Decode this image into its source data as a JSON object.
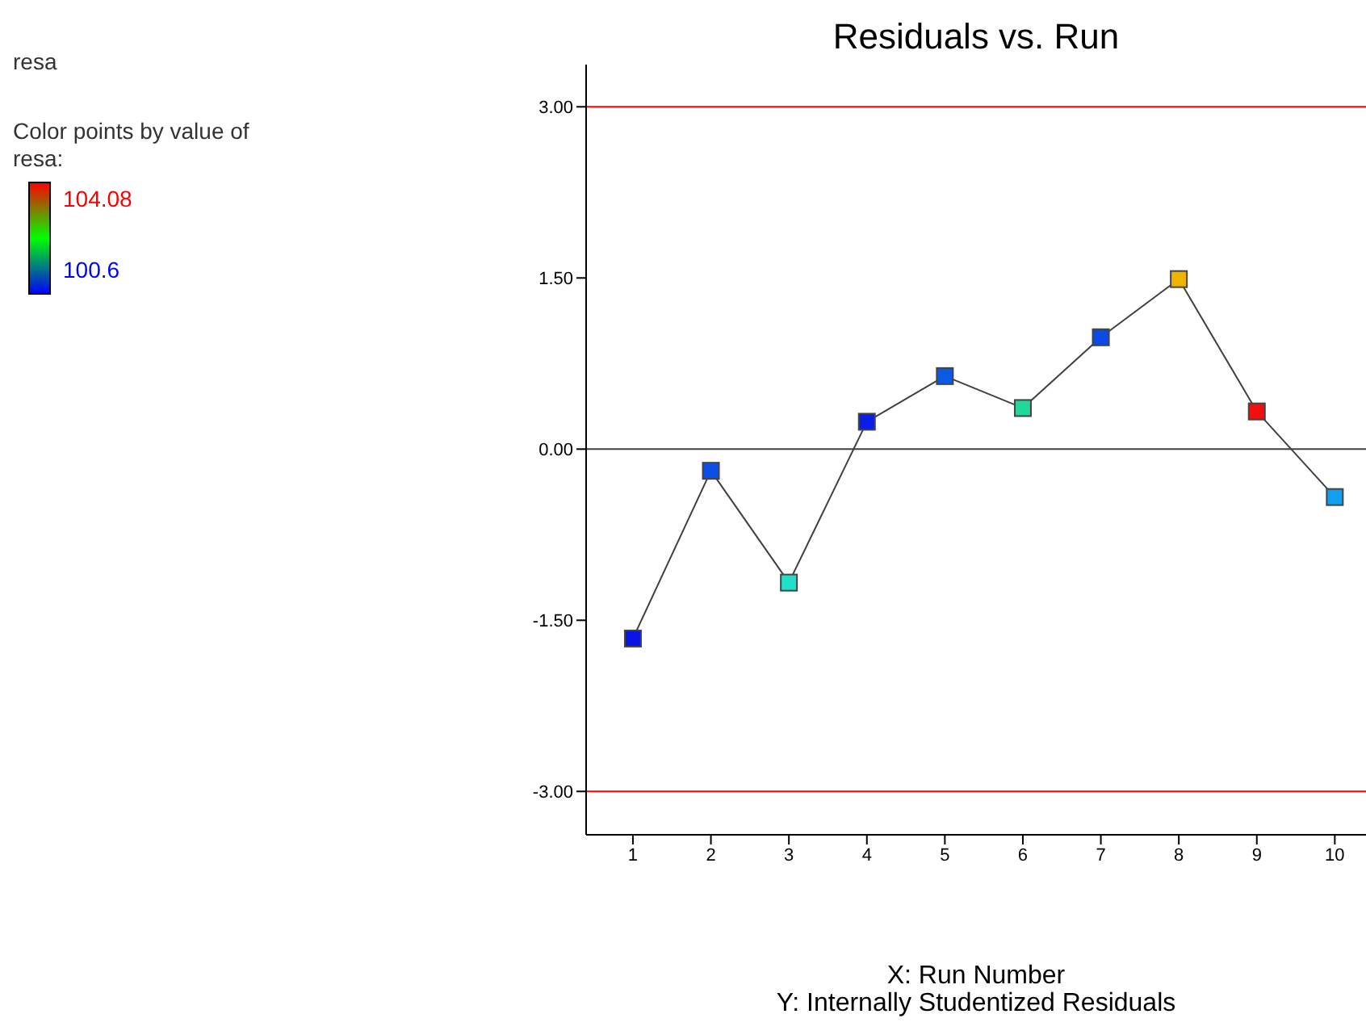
{
  "chart_data": {
    "type": "line",
    "title": "Residuals vs. Run",
    "xlabel": "X: Run Number",
    "clabel": "Color points by value of resa:",
    "clim": [
      100.6,
      104.08
    ],
    "cticks": [
      100.6,
      104.08
    ],
    "annotations": [
      "resa",
      "Y: Internally Studentized Residuals"
    ],
    "x": [
      1,
      2,
      3,
      4,
      5,
      6,
      7,
      8,
      9,
      10
    ],
    "series": [
      {
        "color": "#404040",
        "colors": [
          "#0a14e6",
          "#0a50e6",
          "#20e0c8",
          "#0a1ee6",
          "#0a5ae6",
          "#20d89a",
          "#0a4ae6",
          "#f0b400",
          "#f01010",
          "#10a0f0"
        ],
        "values": [
          -1.66,
          -0.19,
          -1.17,
          0.24,
          0.64,
          0.36,
          0.98,
          1.49,
          0.33,
          -0.42
        ]
      }
    ],
    "xlim": [
      0.4,
      10.4
    ],
    "xticks": [
      1,
      2,
      3,
      4,
      5,
      6,
      7,
      8,
      9,
      10
    ],
    "ylim": [
      -3.38,
      3.37
    ],
    "yticks": [
      {
        "value": -3,
        "label": "-3.00"
      },
      {
        "value": -1.5,
        "label": "-1.50"
      },
      {
        "value": 0,
        "label": "0.00"
      },
      {
        "value": 1.5,
        "label": "1.50"
      },
      {
        "value": 3,
        "label": "3.00"
      }
    ],
    "ref_lines": [
      {
        "axis": "y",
        "value": 3,
        "color": "#ff0000"
      },
      {
        "axis": "y",
        "value": 0,
        "color": "#404040"
      },
      {
        "axis": "y",
        "value": -3,
        "color": "#ff0000"
      }
    ],
    "marker": "square",
    "grid": false,
    "legend": false
  }
}
